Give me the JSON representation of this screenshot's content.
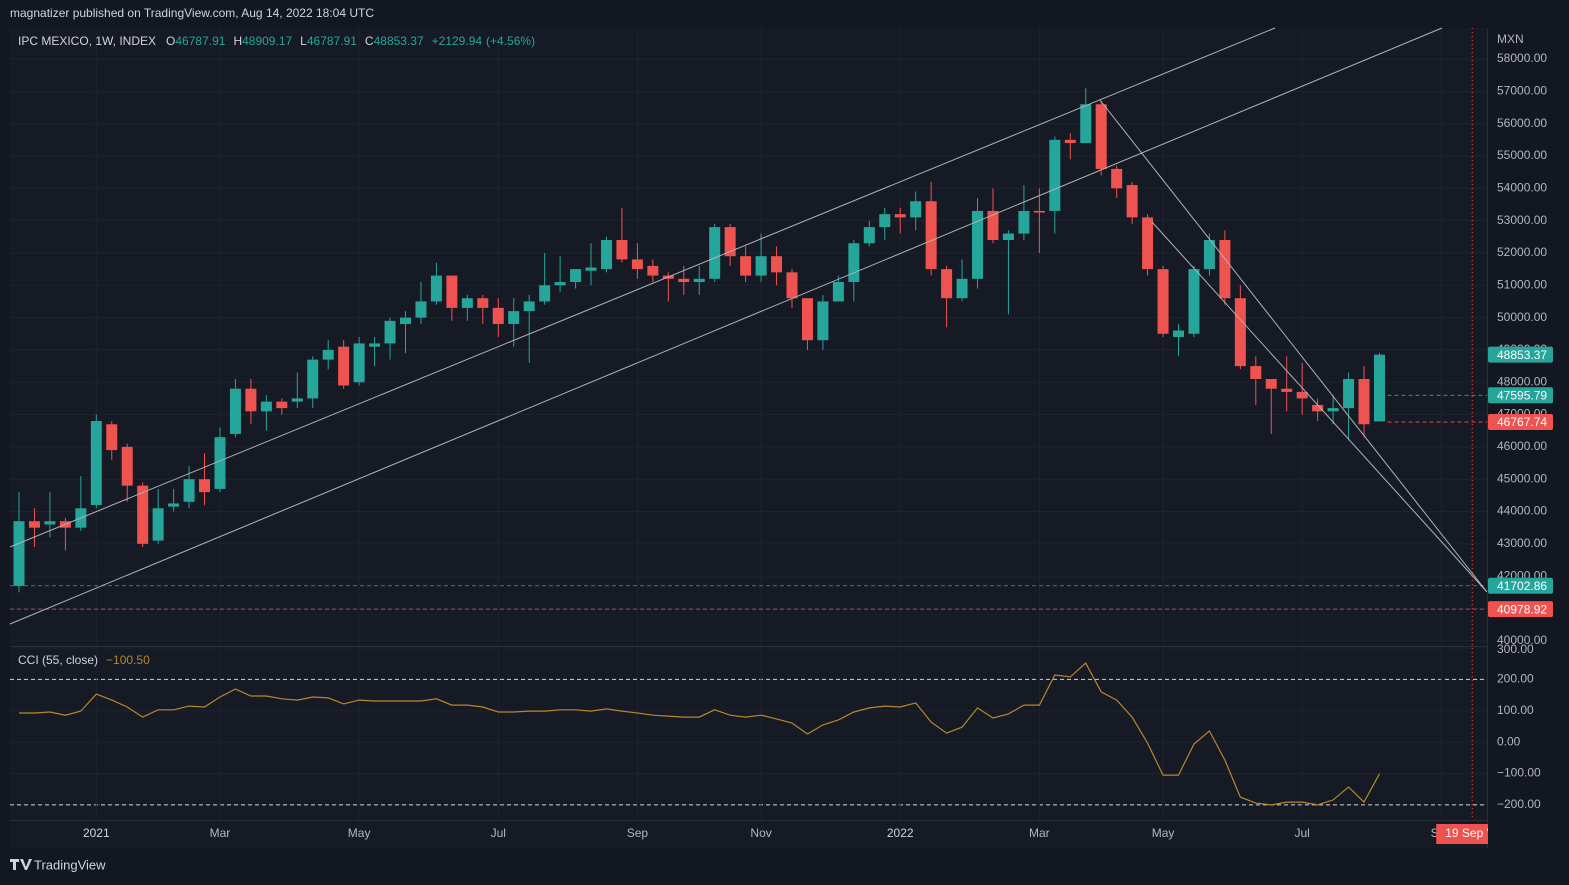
{
  "header": {
    "published": "magnatizer published on TradingView.com, Aug 14, 2022 18:04 UTC",
    "brand": "TradingView"
  },
  "chart_data": [
    {
      "type": "candlestick",
      "symbol": "IPC MEXICO, 1W, INDEX",
      "legend_items": [
        {
          "key": "O",
          "value": 46787.91
        },
        {
          "key": "H",
          "value": 48909.17
        },
        {
          "key": "L",
          "value": 46787.91
        },
        {
          "key": "C",
          "value": 48853.37
        }
      ],
      "change": {
        "value": 2129.94,
        "label": "+2129.94"
      },
      "change_pct": {
        "value": 4.56,
        "label": "(+4.56%)"
      },
      "currency": "MXN",
      "up_color": "#26a69a",
      "down_color": "#ef5350",
      "grid": true,
      "categories": [
        null,
        null,
        null,
        null,
        null,
        "2021",
        null,
        null,
        null,
        null,
        null,
        null,
        null,
        "Mar",
        null,
        null,
        null,
        null,
        null,
        null,
        null,
        null,
        "May",
        null,
        null,
        null,
        null,
        null,
        null,
        null,
        null,
        "Jul",
        null,
        null,
        null,
        null,
        null,
        null,
        null,
        null,
        "Sep",
        null,
        null,
        null,
        null,
        null,
        null,
        null,
        "Nov",
        null,
        null,
        null,
        null,
        null,
        null,
        null,
        null,
        "2022",
        null,
        null,
        null,
        null,
        null,
        null,
        null,
        null,
        "Mar",
        null,
        null,
        null,
        null,
        null,
        null,
        null,
        "May",
        null,
        null,
        null,
        null,
        null,
        null,
        null,
        null,
        "Jul",
        null,
        null,
        null,
        null,
        null,
        null,
        null,
        null,
        "Sep",
        null,
        null,
        null
      ],
      "open": [
        41700,
        43700,
        43600,
        43700,
        43500,
        44200,
        46700,
        46000,
        44800,
        43100,
        44150,
        44300,
        45000,
        44700,
        46400,
        47800,
        47100,
        47400,
        47400,
        47500,
        48700,
        49100,
        48000,
        49100,
        49200,
        49800,
        50000,
        50500,
        51300,
        50300,
        50600,
        50300,
        49800,
        50200,
        50500,
        51000,
        51100,
        51450,
        51500,
        52400,
        51800,
        51600,
        51300,
        51200,
        51100,
        51200,
        52800,
        51900,
        51300,
        51900,
        51400,
        50600,
        49300,
        50500,
        51100,
        52300,
        52800,
        53200,
        53100,
        53600,
        51500,
        50600,
        51200,
        53300,
        52400,
        52600,
        53300,
        53300,
        55500,
        55400,
        56600,
        54600,
        54100,
        53100,
        51500,
        49400,
        49500,
        51500,
        52400,
        50600,
        48500,
        48100,
        47800,
        47700,
        47300,
        47100,
        47200,
        48100,
        46787.91,
        null,
        null,
        null,
        null,
        null,
        null,
        null
      ],
      "high": [
        44600,
        44100,
        44600,
        43800,
        45100,
        47000,
        46800,
        46100,
        44900,
        44700,
        44700,
        45400,
        45800,
        46600,
        48100,
        48100,
        47600,
        47500,
        48300,
        48800,
        49300,
        49300,
        49400,
        49400,
        50000,
        50200,
        51100,
        51700,
        51300,
        50700,
        50700,
        50600,
        50600,
        50700,
        52000,
        51900,
        51500,
        52300,
        52500,
        53400,
        52300,
        51800,
        51400,
        51600,
        51600,
        52900,
        52900,
        52200,
        52600,
        52200,
        51500,
        50600,
        50700,
        51300,
        52400,
        53000,
        53400,
        53400,
        53900,
        54200,
        51600,
        51800,
        53700,
        54000,
        52700,
        54100,
        54000,
        55600,
        55700,
        57100,
        56700,
        54700,
        54200,
        53200,
        51600,
        49800,
        51600,
        52600,
        52700,
        51000,
        48800,
        48100,
        48800,
        48600,
        47500,
        47600,
        48300,
        48500,
        48909.17,
        null,
        null,
        null,
        null,
        null,
        null,
        null
      ],
      "low": [
        41500,
        42900,
        43200,
        42800,
        43400,
        44100,
        45600,
        44300,
        42900,
        43000,
        44000,
        44100,
        44200,
        44600,
        46300,
        46700,
        46500,
        47000,
        47200,
        47200,
        48400,
        47800,
        47900,
        48500,
        48700,
        48900,
        49800,
        50400,
        49900,
        49900,
        49800,
        49400,
        49100,
        48600,
        50400,
        50800,
        50900,
        51000,
        51400,
        51700,
        51200,
        51100,
        50500,
        50700,
        50700,
        51100,
        51600,
        51100,
        51100,
        51000,
        50300,
        49000,
        49000,
        50500,
        50500,
        52200,
        52400,
        52600,
        52700,
        51300,
        49700,
        50500,
        50900,
        52300,
        50100,
        52400,
        52000,
        52600,
        54900,
        55400,
        54400,
        53700,
        52900,
        51300,
        49400,
        48800,
        49400,
        51300,
        50400,
        48400,
        47300,
        46400,
        47100,
        47000,
        46800,
        46700,
        46200,
        46300,
        46787.91,
        null,
        null,
        null,
        null,
        null,
        null,
        null
      ],
      "close": [
        43700,
        43500,
        43700,
        43500,
        44100,
        46800,
        45900,
        44800,
        43000,
        44100,
        44250,
        45000,
        44600,
        46300,
        47800,
        47100,
        47400,
        47200,
        47500,
        48700,
        49000,
        47900,
        49200,
        49200,
        49900,
        50000,
        50500,
        51300,
        50300,
        50600,
        50300,
        49800,
        50200,
        50500,
        51000,
        51100,
        51500,
        51550,
        52400,
        51800,
        51500,
        51300,
        51200,
        51100,
        51200,
        52800,
        51900,
        51300,
        51900,
        51400,
        50600,
        49300,
        50500,
        51100,
        52300,
        52800,
        53200,
        53100,
        53600,
        51500,
        50600,
        51200,
        53300,
        52400,
        52600,
        53300,
        53250,
        55500,
        55400,
        56600,
        54600,
        54000,
        53100,
        51500,
        49500,
        49600,
        51500,
        52400,
        50600,
        48500,
        48100,
        47800,
        47700,
        47500,
        47100,
        47200,
        48100,
        46700,
        48853.37,
        null,
        null,
        null,
        null,
        null,
        null,
        null
      ],
      "ylim": [
        39870,
        58960
      ],
      "yticks": [
        {
          "value": 58000,
          "label": "58000.00"
        },
        {
          "value": 57000,
          "label": "57000.00"
        },
        {
          "value": 56000,
          "label": "56000.00"
        },
        {
          "value": 55000,
          "label": "55000.00"
        },
        {
          "value": 54000,
          "label": "54000.00"
        },
        {
          "value": 53000,
          "label": "53000.00"
        },
        {
          "value": 52000,
          "label": "52000.00"
        },
        {
          "value": 51000,
          "label": "51000.00"
        },
        {
          "value": 50000,
          "label": "50000.00"
        },
        {
          "value": 49000,
          "label": "49000.00"
        },
        {
          "value": 48000,
          "label": "48000.00"
        },
        {
          "value": 47000,
          "label": "47000.00"
        },
        {
          "value": 46000,
          "label": "46000.00"
        },
        {
          "value": 45000,
          "label": "45000.00"
        },
        {
          "value": 44000,
          "label": "44000.00"
        },
        {
          "value": 43000,
          "label": "43000.00"
        },
        {
          "value": 42000,
          "label": "42000.00"
        },
        {
          "value": 41000,
          "label": "41000.00"
        },
        {
          "value": 40000,
          "label": "40000.00"
        }
      ],
      "price_labels": [
        {
          "value": 48853.37,
          "color": "#26a69a"
        },
        {
          "value": 47595.79,
          "color": "#26a69a"
        },
        {
          "value": 46767.74,
          "color": "#ef5350"
        },
        {
          "value": 41702.86,
          "color": "#26a69a"
        },
        {
          "value": 40978.92,
          "color": "#ef5350"
        }
      ],
      "cursor_label": "19 Sep '22"
    },
    {
      "type": "line",
      "title": "CCI (55, close)",
      "last_label": "−100.50",
      "color": "#b8862b",
      "values": [
        93,
        93,
        96,
        86,
        99,
        153,
        134,
        112,
        80,
        103,
        103,
        115,
        112,
        144,
        169,
        147,
        147,
        138,
        134,
        144,
        141,
        122,
        134,
        131,
        131,
        131,
        131,
        138,
        118,
        118,
        112,
        96,
        96,
        99,
        99,
        103,
        103,
        99,
        106,
        99,
        93,
        86,
        83,
        80,
        80,
        103,
        86,
        80,
        86,
        74,
        61,
        26,
        55,
        71,
        96,
        109,
        115,
        112,
        125,
        64,
        29,
        48,
        109,
        77,
        90,
        118,
        118,
        214,
        208,
        252,
        160,
        134,
        80,
        -3,
        -105,
        -105,
        -6,
        36,
        -57,
        -175,
        -194,
        -200,
        -191,
        -191,
        -200,
        -184,
        -143,
        -191,
        -100.5,
        null,
        null,
        null,
        null,
        null,
        null,
        null
      ],
      "ylim": [
        -248,
        300
      ],
      "yticks": [
        {
          "value": 300,
          "label": "300.00"
        },
        {
          "value": 200,
          "label": "200.00"
        },
        {
          "value": 100,
          "label": "100.00"
        },
        {
          "value": 0,
          "label": "0.00"
        },
        {
          "value": -100,
          "label": "−100.00"
        },
        {
          "value": -200,
          "label": "−200.00"
        }
      ],
      "bands": [
        200,
        -200
      ]
    }
  ]
}
